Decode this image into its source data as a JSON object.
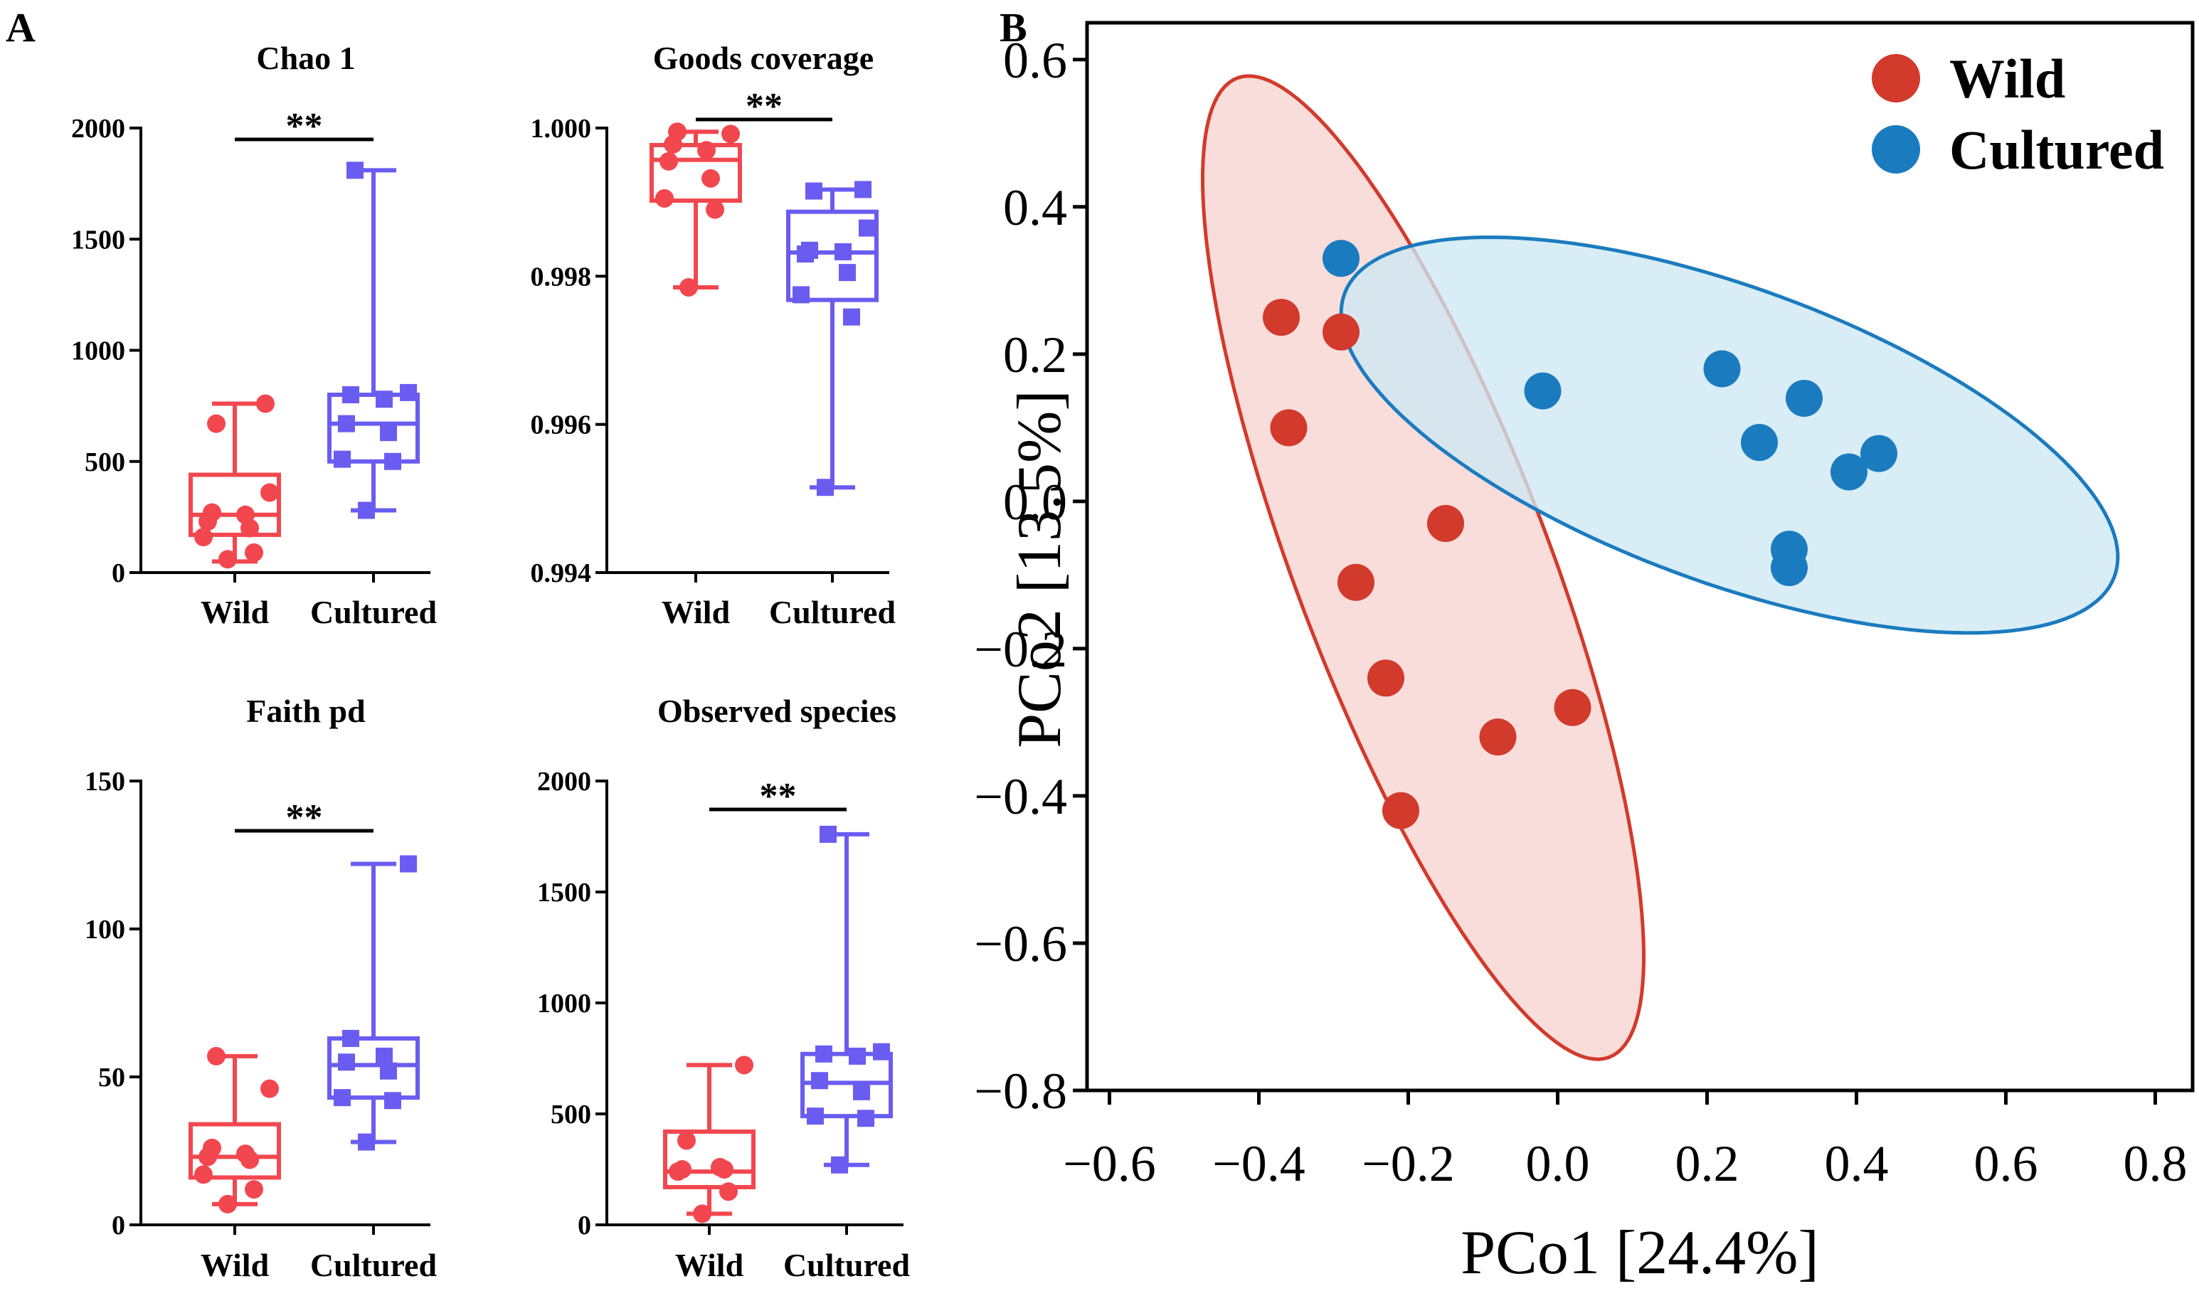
{
  "panels": {
    "A": "A",
    "B": "B"
  },
  "colors": {
    "wild_box": "#f2474f",
    "cultured_box": "#6a5cf0",
    "wild_pcoa": "#d23a2c",
    "wild_fill": "#f6d4cf",
    "cultured_pcoa": "#1b7bbf",
    "cultured_fill": "#cde8f3"
  },
  "chart_data": [
    {
      "type": "box",
      "title": "Chao 1",
      "categories": [
        "Wild",
        "Cultured"
      ],
      "ylim": [
        0,
        2000
      ],
      "yticks": [
        0,
        500,
        1000,
        1500,
        2000
      ],
      "tick_labels": [
        "0",
        "500",
        "1000",
        "1500",
        "2000"
      ],
      "significance": "**",
      "series": [
        {
          "name": "Wild",
          "min": 50,
          "q1": 170,
          "median": 260,
          "q3": 440,
          "max": 760,
          "points": [
            60,
            90,
            160,
            200,
            230,
            260,
            270,
            360,
            670,
            760
          ]
        },
        {
          "name": "Cultured",
          "min": 280,
          "q1": 500,
          "median": 670,
          "q3": 800,
          "max": 1810,
          "points": [
            280,
            500,
            510,
            630,
            670,
            780,
            800,
            810,
            1810
          ]
        }
      ]
    },
    {
      "type": "box",
      "title": "Goods coverage",
      "categories": [
        "Wild",
        "Cultured"
      ],
      "ylim": [
        0.994,
        1.0
      ],
      "yticks": [
        0.994,
        0.996,
        0.998,
        1.0
      ],
      "tick_labels": [
        "0.994",
        "0.996",
        "0.998",
        "1.000"
      ],
      "significance": "**",
      "series": [
        {
          "name": "Wild",
          "min": 0.99785,
          "q1": 0.99902,
          "median": 0.99957,
          "q3": 0.99977,
          "max": 0.99995,
          "points": [
            0.99785,
            0.9989,
            0.99905,
            0.99932,
            0.99955,
            0.9997,
            0.99978,
            0.99992,
            0.99995
          ]
        },
        {
          "name": "Cultured",
          "min": 0.99515,
          "q1": 0.99768,
          "median": 0.99832,
          "q3": 0.99887,
          "max": 0.99917,
          "points": [
            0.99515,
            0.99745,
            0.99775,
            0.99805,
            0.9983,
            0.99833,
            0.99835,
            0.99865,
            0.99915,
            0.99917
          ]
        }
      ]
    },
    {
      "type": "box",
      "title": "Faith pd",
      "categories": [
        "Wild",
        "Cultured"
      ],
      "ylim": [
        0,
        150
      ],
      "yticks": [
        0,
        50,
        100,
        150
      ],
      "tick_labels": [
        "0",
        "50",
        "100",
        "150"
      ],
      "significance": "**",
      "series": [
        {
          "name": "Wild",
          "min": 7,
          "q1": 16,
          "median": 23,
          "q3": 34,
          "max": 57,
          "points": [
            7,
            12,
            17,
            22,
            23,
            24,
            26,
            46,
            57
          ]
        },
        {
          "name": "Cultured",
          "min": 28,
          "q1": 43,
          "median": 54,
          "q3": 63,
          "max": 122,
          "points": [
            28,
            42,
            43,
            52,
            55,
            57,
            63,
            122
          ]
        }
      ]
    },
    {
      "type": "box",
      "title": "Observed species",
      "categories": [
        "Wild",
        "Cultured"
      ],
      "ylim": [
        0,
        2000
      ],
      "yticks": [
        0,
        500,
        1000,
        1500,
        2000
      ],
      "tick_labels": [
        "0",
        "500",
        "1000",
        "1500",
        "2000"
      ],
      "significance": "**",
      "series": [
        {
          "name": "Wild",
          "min": 50,
          "q1": 170,
          "median": 240,
          "q3": 420,
          "max": 720,
          "points": [
            50,
            150,
            240,
            250,
            250,
            260,
            380,
            720
          ]
        },
        {
          "name": "Cultured",
          "min": 270,
          "q1": 490,
          "median": 640,
          "q3": 770,
          "max": 1760,
          "points": [
            270,
            480,
            490,
            600,
            650,
            760,
            770,
            780,
            1760
          ]
        }
      ]
    },
    {
      "type": "scatter",
      "xlabel": "PCo1 [24.4%]",
      "ylabel": "PCo2 [13.5%]",
      "xlim": [
        -0.63,
        0.85
      ],
      "ylim": [
        -0.8,
        0.65
      ],
      "xticks": [
        -0.6,
        -0.4,
        -0.2,
        0.0,
        0.2,
        0.4,
        0.6,
        0.8
      ],
      "xtick_labels": [
        "−0.6",
        "−0.4",
        "−0.2",
        "0.0",
        "0.2",
        "0.4",
        "0.6",
        "0.8"
      ],
      "yticks": [
        0.6,
        0.4,
        0.2,
        0.0,
        -0.2,
        -0.4,
        -0.6,
        -0.8
      ],
      "ytick_labels": [
        "0.6",
        "0.4",
        "0.2",
        "0.0",
        "−0.2",
        "−0.4",
        "−0.6",
        "−0.8"
      ],
      "legend": [
        "Wild",
        "Cultured"
      ],
      "series": [
        {
          "name": "Wild",
          "points": [
            [
              -0.37,
              0.25
            ],
            [
              -0.29,
              0.23
            ],
            [
              -0.36,
              0.1
            ],
            [
              -0.15,
              -0.03
            ],
            [
              -0.27,
              -0.11
            ],
            [
              -0.23,
              -0.24
            ],
            [
              0.02,
              -0.28
            ],
            [
              -0.08,
              -0.32
            ],
            [
              -0.21,
              -0.42
            ]
          ],
          "ellipse": {
            "cx": -0.18,
            "cy": -0.09,
            "rx": 0.71,
            "ry": 0.17,
            "angle": -69.5
          }
        },
        {
          "name": "Cultured",
          "points": [
            [
              -0.29,
              0.33
            ],
            [
              -0.02,
              0.15
            ],
            [
              0.22,
              0.18
            ],
            [
              0.33,
              0.14
            ],
            [
              0.27,
              0.08
            ],
            [
              0.39,
              0.04
            ],
            [
              0.43,
              0.065
            ],
            [
              0.31,
              -0.065
            ],
            [
              0.31,
              -0.09
            ]
          ],
          "ellipse": {
            "cx": 0.23,
            "cy": 0.09,
            "rx": 0.55,
            "ry": 0.2,
            "angle": -20.5
          }
        }
      ]
    }
  ]
}
